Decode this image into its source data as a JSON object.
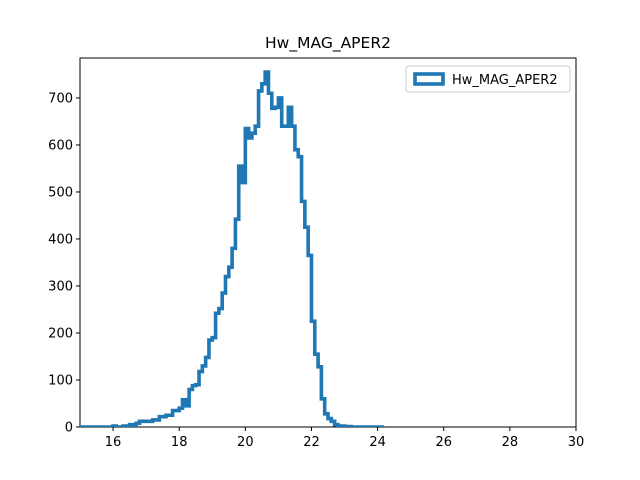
{
  "chart_data": {
    "type": "histogram",
    "title": "Hw_MAG_APER2",
    "xlabel": "",
    "ylabel": "",
    "xlim": [
      15,
      30
    ],
    "ylim": [
      0,
      785
    ],
    "xticks": [
      16,
      18,
      20,
      22,
      24,
      26,
      28,
      30
    ],
    "yticks": [
      0,
      100,
      200,
      300,
      400,
      500,
      600,
      700
    ],
    "grid": false,
    "legend_position": "top-right",
    "series": [
      {
        "name": "Hw_MAG_APER2",
        "style": "step",
        "color": "#1f77b4",
        "bin_edges": [
          15.0,
          16.0,
          16.1,
          16.3,
          16.5,
          16.6,
          16.7,
          16.8,
          17.0,
          17.2,
          17.4,
          17.6,
          17.8,
          18.0,
          18.1,
          18.2,
          18.3,
          18.4,
          18.5,
          18.6,
          18.7,
          18.8,
          18.9,
          19.0,
          19.1,
          19.2,
          19.3,
          19.4,
          19.5,
          19.6,
          19.7,
          19.8,
          19.9,
          20.0,
          20.1,
          20.2,
          20.3,
          20.4,
          20.5,
          20.6,
          20.7,
          20.8,
          20.9,
          21.0,
          21.1,
          21.2,
          21.3,
          21.4,
          21.5,
          21.6,
          21.7,
          21.8,
          21.9,
          22.0,
          22.1,
          22.2,
          22.3,
          22.4,
          22.5,
          22.6,
          22.7,
          22.8,
          22.9,
          23.0,
          23.2,
          23.4,
          23.6,
          24.2
        ],
        "counts": [
          0,
          2,
          0,
          2,
          5,
          2,
          8,
          12,
          12,
          15,
          22,
          25,
          35,
          40,
          58,
          45,
          80,
          88,
          90,
          118,
          130,
          148,
          185,
          190,
          242,
          252,
          285,
          320,
          340,
          380,
          442,
          555,
          520,
          635,
          615,
          625,
          640,
          715,
          730,
          755,
          710,
          678,
          680,
          700,
          640,
          640,
          680,
          640,
          590,
          575,
          480,
          425,
          365,
          225,
          155,
          128,
          60,
          28,
          18,
          12,
          5,
          2,
          2,
          1,
          0,
          0,
          0
        ]
      }
    ]
  }
}
